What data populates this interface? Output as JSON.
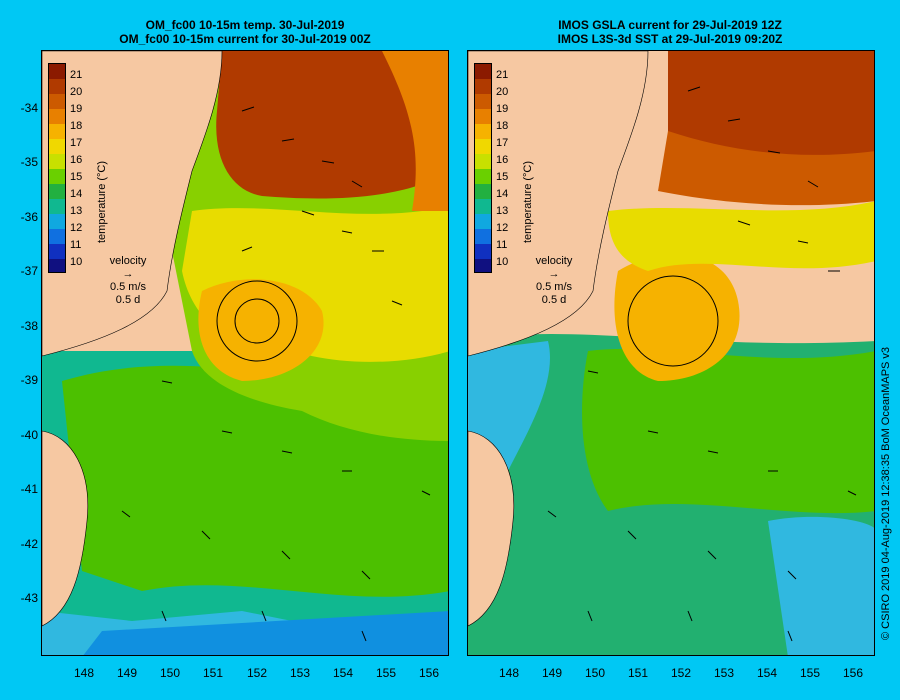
{
  "left_panel": {
    "title_line1": "OM_fc00 10-15m temp. 30-Jul-2019",
    "title_line2": "OM_fc00 10-15m current for 30-Jul-2019 00Z"
  },
  "right_panel": {
    "title_line1": "IMOS GSLA current for 29-Jul-2019 12Z",
    "title_line2": "IMOS L3S-3d SST at 29-Jul-2019 09:20Z"
  },
  "colorbar": {
    "ticks": [
      "21",
      "20",
      "19",
      "18",
      "17",
      "16",
      "15",
      "14",
      "13",
      "12",
      "11",
      "10"
    ],
    "title": "temperature (°C)",
    "colors": [
      "#8b1a00",
      "#b03a00",
      "#cc5a00",
      "#e88000",
      "#f6b200",
      "#f0d800",
      "#c8e000",
      "#6ad000",
      "#22b040",
      "#10b890",
      "#10a8e0",
      "#1070e0",
      "#1030c0",
      "#101080"
    ]
  },
  "velocity_legend": {
    "label": "velocity",
    "speed": "0.5 m/s",
    "duration": "0.5 d"
  },
  "lat_labels": [
    "-34",
    "-35",
    "-36",
    "-37",
    "-38",
    "-39",
    "-40",
    "-41",
    "-42",
    "-43"
  ],
  "lon_labels": [
    "148",
    "149",
    "150",
    "151",
    "152",
    "153",
    "154",
    "155",
    "156"
  ],
  "copyright": "© CSIRO 2019   04-Aug-2019 12:38:35 BoM OceanMAPS v3",
  "map_extent": {
    "lon_min": 147.1,
    "lon_max": 156.5,
    "lat_min": -43.6,
    "lat_max": -33.1
  }
}
